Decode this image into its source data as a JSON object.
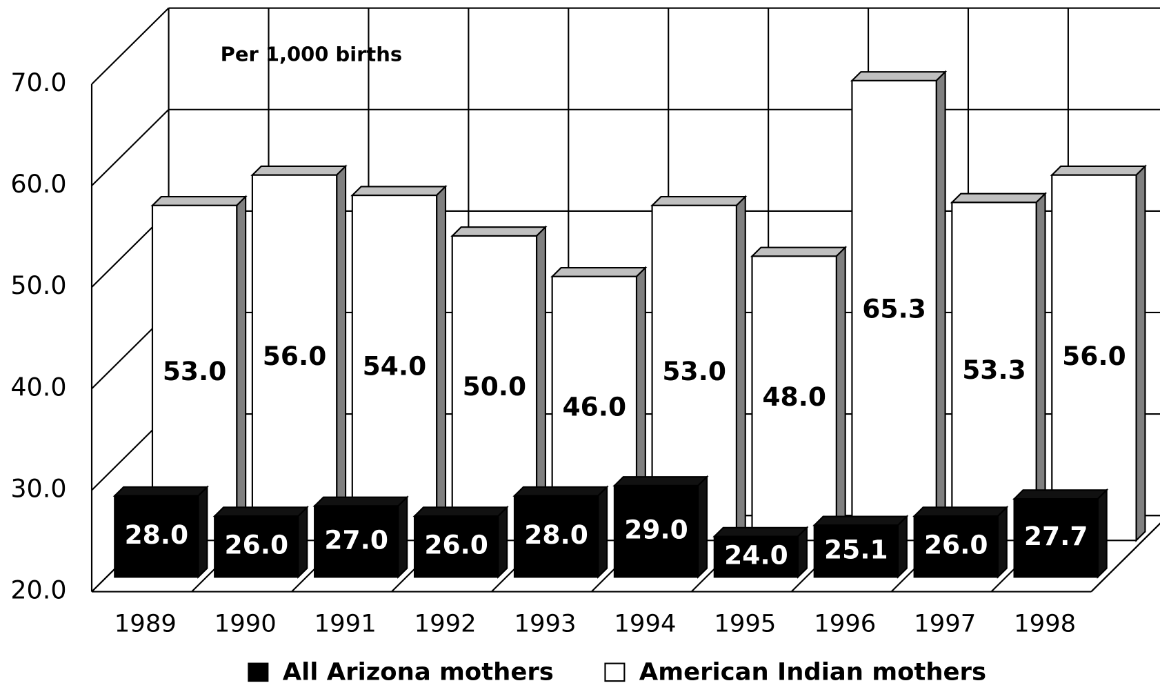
{
  "chart_data": {
    "type": "bar3d",
    "annotation": "Per 1,000 births",
    "categories": [
      "1989",
      "1990",
      "1991",
      "1992",
      "1993",
      "1994",
      "1995",
      "1996",
      "1997",
      "1998"
    ],
    "series": [
      {
        "name": "All Arizona mothers",
        "color": "#000000",
        "values": [
          28.0,
          26.0,
          27.0,
          26.0,
          28.0,
          29.0,
          24.0,
          25.1,
          26.0,
          27.7
        ],
        "value_labels": [
          "28.0",
          "26.0",
          "27.0",
          "26.0",
          "28.0",
          "29.0",
          "24.0",
          "25.1",
          "26.0",
          "27.7"
        ]
      },
      {
        "name": "American Indian mothers",
        "color": "#ffffff",
        "values": [
          53.0,
          56.0,
          54.0,
          50.0,
          46.0,
          53.0,
          48.0,
          65.3,
          53.3,
          56.0
        ],
        "value_labels": [
          "53.0",
          "56.0",
          "54.0",
          "50.0",
          "46.0",
          "53.0",
          "48.0",
          "65.3",
          "53.3",
          "56.0"
        ]
      }
    ],
    "ylim": [
      20,
      70
    ],
    "yticks": [
      {
        "value": 20,
        "label": "20.0"
      },
      {
        "value": 30,
        "label": "30.0"
      },
      {
        "value": 40,
        "label": "40.0"
      },
      {
        "value": 50,
        "label": "50.0"
      },
      {
        "value": 60,
        "label": "60.0"
      },
      {
        "value": 70,
        "label": "70.0"
      }
    ],
    "grid": true,
    "legend": "bottom"
  }
}
